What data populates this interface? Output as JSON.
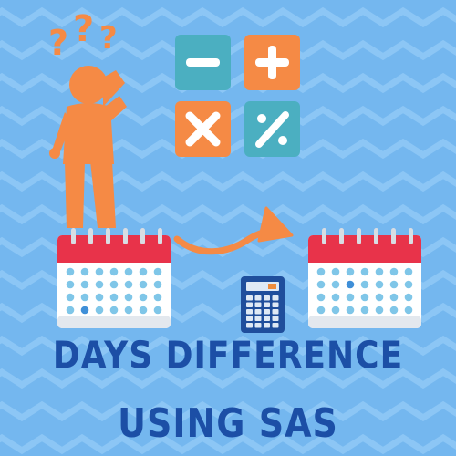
{
  "title": {
    "line1": "DAYS DIFFERENCE",
    "line2": "USING SAS"
  },
  "colors": {
    "background": "#74b7ef",
    "zigzag": "#8cc6f5",
    "figure": "#f58a45",
    "tile_teal": "#4bafc1",
    "tile_orange": "#f58a45",
    "calendar_header": "#e8334a",
    "calendar_dot": "#7fc6e8",
    "calendar_dot_selected": "#3f8fd8",
    "title_text": "#1c4fa6",
    "calculator_body": "#1f4e9c"
  },
  "icons": [
    "confused-person-icon",
    "question-marks-icon",
    "minus-tile-icon",
    "plus-tile-icon",
    "multiply-tile-icon",
    "percent-tile-icon",
    "calendar-start-icon",
    "curved-arrow-icon",
    "calendar-end-icon",
    "calculator-icon"
  ]
}
